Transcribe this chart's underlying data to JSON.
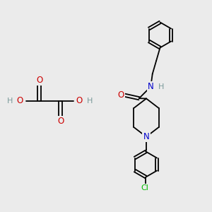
{
  "bg_color": "#ebebeb",
  "atom_colors": {
    "C": "#000000",
    "N": "#0000cc",
    "O": "#cc0000",
    "Cl": "#00bb00",
    "H": "#7a9a9a"
  },
  "bond_color": "#000000",
  "bond_width": 1.3,
  "figsize": [
    3.0,
    3.0
  ],
  "dpi": 100
}
